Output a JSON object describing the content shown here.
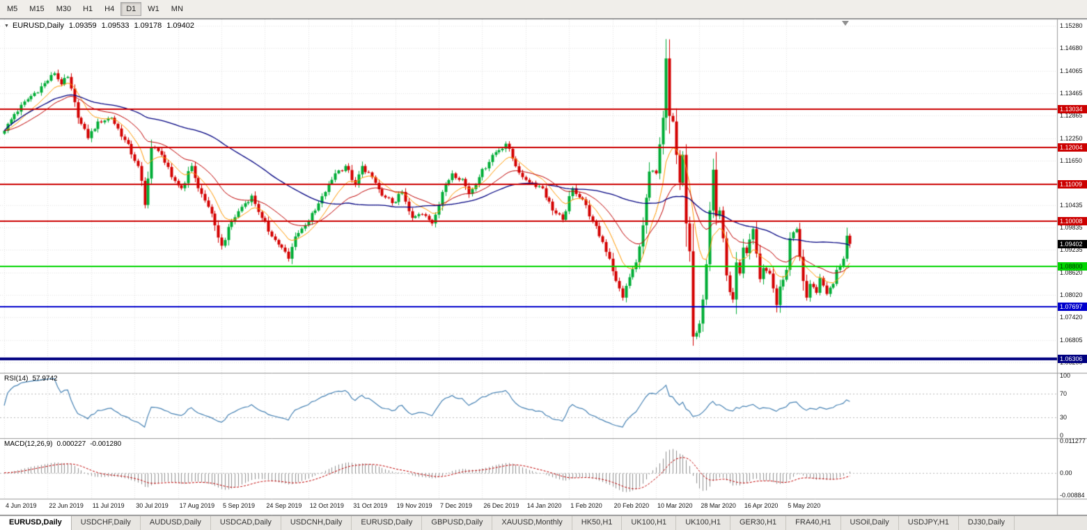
{
  "toolbar": {
    "timeframes": [
      "M5",
      "M15",
      "M30",
      "H1",
      "H4",
      "D1",
      "W1",
      "MN"
    ],
    "active": "D1"
  },
  "chart": {
    "symbol_period": "EURUSD,Daily",
    "ohlc": {
      "open": "1.09359",
      "high": "1.09533",
      "low": "1.09178",
      "close": "1.09402"
    }
  },
  "rsi": {
    "label": "RSI(14)",
    "value": "57.9742",
    "axis_labels": [
      "100",
      "70",
      "30",
      "0"
    ],
    "level_lines": [
      70,
      30
    ],
    "color": "#4682b4"
  },
  "macd": {
    "label": "MACD(12,26,9)",
    "main": "0.000227",
    "signal": "-0.001280",
    "axis_labels": [
      "0.011277",
      "0.00",
      "-0.00884"
    ],
    "histogram_color": "#909090",
    "signal_color": "#c00000"
  },
  "tabs": [
    {
      "label": "EURUSD,Daily",
      "active": true
    },
    {
      "label": "USDCHF,Daily"
    },
    {
      "label": "AUDUSD,Daily"
    },
    {
      "label": "USDCAD,Daily"
    },
    {
      "label": "USDCNH,Daily"
    },
    {
      "label": "EURUSD,Daily"
    },
    {
      "label": "GBPUSD,Daily"
    },
    {
      "label": "XAUUSD,Monthly"
    },
    {
      "label": "HK50,H1"
    },
    {
      "label": "UK100,H1"
    },
    {
      "label": "UK100,H1"
    },
    {
      "label": "GER30,H1"
    },
    {
      "label": "FRA40,H1"
    },
    {
      "label": "USOil,Daily"
    },
    {
      "label": "USDJPY,H1"
    },
    {
      "label": "DJ30,Daily"
    }
  ],
  "chart_data": {
    "type": "candlestick",
    "symbol": "EURUSD",
    "period": "Daily",
    "candle_count": 254,
    "candle_spacing": 4.8,
    "label_every_n_candles": 13,
    "y_range": [
      1.0598,
      1.1545
    ],
    "y_ticks": [
      "1.15280",
      "1.14680",
      "1.14065",
      "1.13465",
      "1.12865",
      "1.12250",
      "1.11650",
      "1.10435",
      "1.09835",
      "1.09235",
      "1.08620",
      "1.08020",
      "1.07420",
      "1.06805",
      "1.06200"
    ],
    "x_labels": [
      "4 Jun 2019",
      "22 Jun 2019",
      "11 Jul 2019",
      "30 Jul 2019",
      "17 Aug 2019",
      "5 Sep 2019",
      "24 Sep 2019",
      "12 Oct 2019",
      "31 Oct 2019",
      "19 Nov 2019",
      "7 Dec 2019",
      "26 Dec 2019",
      "14 Jan 2020",
      "1 Feb 2020",
      "20 Feb 2020",
      "10 Mar 2020",
      "28 Mar 2020",
      "16 Apr 2020",
      "5 May 2020"
    ],
    "colors": {
      "up": "#00ad36",
      "down": "#d40000",
      "grid": "#e4e4e4",
      "separator": "#999999",
      "background": "#ffffff"
    },
    "levels": [
      {
        "label": "1.13034",
        "price": 1.13034,
        "color": "#cc0000",
        "line_width": 2,
        "text_color": "#ffffff"
      },
      {
        "label": "1.12004",
        "price": 1.12004,
        "color": "#cc0000",
        "line_width": 2,
        "text_color": "#ffffff"
      },
      {
        "label": "1.11009",
        "price": 1.11009,
        "color": "#cc0000",
        "line_width": 2,
        "text_color": "#ffffff"
      },
      {
        "label": "1.10008",
        "price": 1.10008,
        "color": "#cc0000",
        "line_width": 2,
        "text_color": "#ffffff"
      },
      {
        "label": "1.08800",
        "price": 1.088,
        "color": "#00d500",
        "line_width": 2,
        "text_color": "#003300"
      },
      {
        "label": "1.07697",
        "price": 1.07697,
        "color": "#0000cc",
        "line_width": 2,
        "text_color": "#ffffff"
      },
      {
        "label": "1.06306",
        "price": 1.06306,
        "color": "#000080",
        "line_width": 4,
        "text_color": "#ffffff"
      }
    ],
    "current_price": {
      "value": 1.09402,
      "label": "1.09402",
      "badge_color": "#000000",
      "text_color": "#ffffff"
    },
    "moving_averages": [
      {
        "type": "ema",
        "period": 10,
        "color": "#ff9900",
        "width": 1
      },
      {
        "type": "ema",
        "period": 25,
        "color": "#c00000",
        "width": 1
      },
      {
        "type": "sma",
        "period": 60,
        "color": "#000080",
        "width": 1.3
      }
    ],
    "rsi": {
      "period": 14,
      "panel_value_range": [
        -4,
        104
      ]
    },
    "macd": {
      "fast": 12,
      "slow": 26,
      "signal": 9,
      "y_range": [
        -0.0092,
        0.0118
      ]
    },
    "close_path_anchors": [
      [
        0,
        1.1245
      ],
      [
        3,
        1.129
      ],
      [
        7,
        1.133
      ],
      [
        13,
        1.138
      ],
      [
        15,
        1.14
      ],
      [
        17,
        1.137
      ],
      [
        19,
        1.139
      ],
      [
        22,
        1.128
      ],
      [
        25,
        1.1225
      ],
      [
        28,
        1.127
      ],
      [
        32,
        1.128
      ],
      [
        36,
        1.122
      ],
      [
        40,
        1.115
      ],
      [
        41,
        1.111
      ],
      [
        42,
        1.1045
      ],
      [
        44,
        1.12
      ],
      [
        47,
        1.118
      ],
      [
        50,
        1.112
      ],
      [
        53,
        1.109
      ],
      [
        56,
        1.115
      ],
      [
        58,
        1.109
      ],
      [
        61,
        1.104
      ],
      [
        63,
        1.099
      ],
      [
        65,
        1.0935
      ],
      [
        68,
        1.1
      ],
      [
        71,
        1.104
      ],
      [
        74,
        1.107
      ],
      [
        77,
        1.101
      ],
      [
        80,
        1.096
      ],
      [
        83,
        1.093
      ],
      [
        85,
        1.09
      ],
      [
        87,
        1.096
      ],
      [
        90,
        1.099
      ],
      [
        93,
        1.103
      ],
      [
        96,
        1.108
      ],
      [
        99,
        1.113
      ],
      [
        102,
        1.115
      ],
      [
        105,
        1.11
      ],
      [
        107,
        1.115
      ],
      [
        110,
        1.112
      ],
      [
        113,
        1.107
      ],
      [
        116,
        1.105
      ],
      [
        119,
        1.108
      ],
      [
        122,
        1.101
      ],
      [
        125,
        1.102
      ],
      [
        128,
        1.0995
      ],
      [
        131,
        1.108
      ],
      [
        134,
        1.113
      ],
      [
        137,
        1.1115
      ],
      [
        139,
        1.1075
      ],
      [
        142,
        1.112
      ],
      [
        146,
        1.118
      ],
      [
        150,
        1.121
      ],
      [
        152,
        1.117
      ],
      [
        155,
        1.112
      ],
      [
        158,
        1.1105
      ],
      [
        161,
        1.109
      ],
      [
        164,
        1.103
      ],
      [
        167,
        1.1005
      ],
      [
        170,
        1.109
      ],
      [
        173,
        1.106
      ],
      [
        176,
        1.1
      ],
      [
        179,
        1.0945
      ],
      [
        181,
        1.09
      ],
      [
        183,
        1.084
      ],
      [
        185,
        1.0795
      ],
      [
        187,
        1.085
      ],
      [
        189,
        1.089
      ],
      [
        191,
        1.099
      ],
      [
        193,
        1.1135
      ],
      [
        195,
        1.113
      ],
      [
        197,
        1.128
      ],
      [
        198,
        1.144
      ],
      [
        199,
        1.1285
      ],
      [
        200,
        1.127
      ],
      [
        201,
        1.118
      ],
      [
        202,
        1.1105
      ],
      [
        203,
        1.118
      ],
      [
        204,
        1.0995
      ],
      [
        205,
        1.092
      ],
      [
        206,
        1.069
      ],
      [
        207,
        1.07
      ],
      [
        208,
        1.0725
      ],
      [
        209,
        1.079
      ],
      [
        210,
        1.0885
      ],
      [
        211,
        1.103
      ],
      [
        212,
        1.114
      ],
      [
        213,
        1.1015
      ],
      [
        214,
        1.103
      ],
      [
        215,
        1.0955
      ],
      [
        216,
        1.0855
      ],
      [
        217,
        1.081
      ],
      [
        218,
        1.079
      ],
      [
        219,
        1.089
      ],
      [
        220,
        1.086
      ],
      [
        221,
        1.093
      ],
      [
        222,
        1.0915
      ],
      [
        224,
        1.098
      ],
      [
        226,
        1.0845
      ],
      [
        227,
        1.0875
      ],
      [
        229,
        1.086
      ],
      [
        230,
        1.082
      ],
      [
        231,
        1.0775
      ],
      [
        232,
        1.0825
      ],
      [
        234,
        1.087
      ],
      [
        235,
        1.0955
      ],
      [
        237,
        1.098
      ],
      [
        238,
        1.0905
      ],
      [
        239,
        1.084
      ],
      [
        240,
        1.0795
      ],
      [
        241,
        1.0832
      ],
      [
        243,
        1.0808
      ],
      [
        244,
        1.0848
      ],
      [
        246,
        1.0805
      ],
      [
        248,
        1.0832
      ],
      [
        249,
        1.087
      ],
      [
        251,
        1.09
      ],
      [
        252,
        1.0962
      ],
      [
        253,
        1.094
      ]
    ]
  }
}
